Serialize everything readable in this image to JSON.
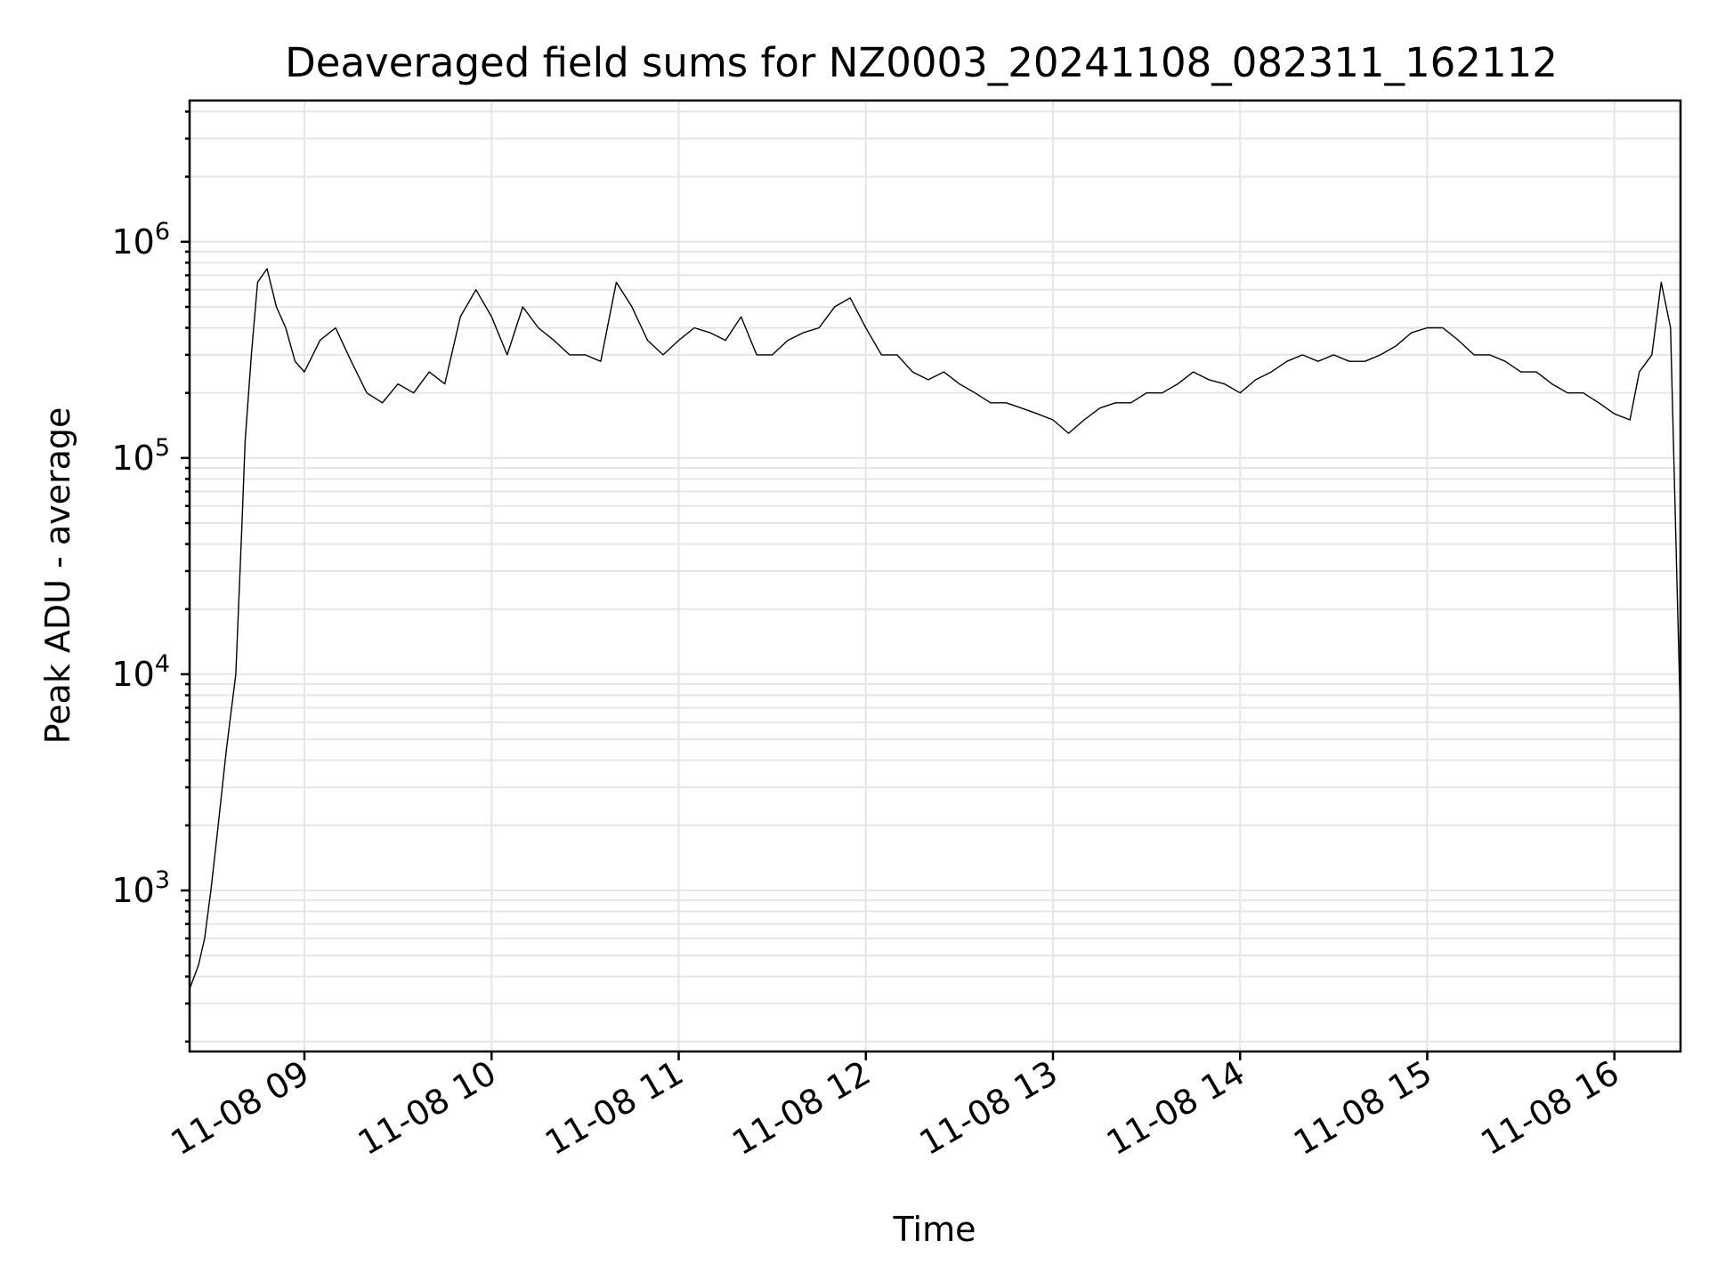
{
  "chart_data": {
    "type": "line",
    "title": "Deaveraged field sums for NZ0003_20241108_082311_162112",
    "xlabel": "Time",
    "ylabel": "Peak ADU - average",
    "yscale": "log",
    "xlim": [
      "2024-11-08 08:23:11",
      "2024-11-08 16:21:12"
    ],
    "ylim": [
      180,
      4500000
    ],
    "xticks": [
      {
        "value": "2024-11-08 09:00",
        "label": "11-08 09"
      },
      {
        "value": "2024-11-08 10:00",
        "label": "11-08 10"
      },
      {
        "value": "2024-11-08 11:00",
        "label": "11-08 11"
      },
      {
        "value": "2024-11-08 12:00",
        "label": "11-08 12"
      },
      {
        "value": "2024-11-08 13:00",
        "label": "11-08 13"
      },
      {
        "value": "2024-11-08 14:00",
        "label": "11-08 14"
      },
      {
        "value": "2024-11-08 15:00",
        "label": "11-08 15"
      },
      {
        "value": "2024-11-08 16:00",
        "label": "11-08 16"
      }
    ],
    "yticks": [
      {
        "value": 1000,
        "base": "10",
        "exp": "3"
      },
      {
        "value": 10000,
        "base": "10",
        "exp": "4"
      },
      {
        "value": 100000,
        "base": "10",
        "exp": "5"
      },
      {
        "value": 1000000,
        "base": "10",
        "exp": "6"
      }
    ],
    "grid": true,
    "legend": "none",
    "line_color": "#000000",
    "series": [
      {
        "x": [
          "2024-11-08 08:23:11",
          "2024-11-08 08:26",
          "2024-11-08 08:28",
          "2024-11-08 08:30",
          "2024-11-08 08:32",
          "2024-11-08 08:35",
          "2024-11-08 08:38",
          "2024-11-08 08:40",
          "2024-11-08 08:41",
          "2024-11-08 08:43",
          "2024-11-08 08:45",
          "2024-11-08 08:48",
          "2024-11-08 08:51",
          "2024-11-08 08:54",
          "2024-11-08 08:57",
          "2024-11-08 09:00",
          "2024-11-08 09:05",
          "2024-11-08 09:10",
          "2024-11-08 09:15",
          "2024-11-08 09:20",
          "2024-11-08 09:25",
          "2024-11-08 09:30",
          "2024-11-08 09:35",
          "2024-11-08 09:40",
          "2024-11-08 09:45",
          "2024-11-08 09:50",
          "2024-11-08 09:55",
          "2024-11-08 10:00",
          "2024-11-08 10:05",
          "2024-11-08 10:10",
          "2024-11-08 10:15",
          "2024-11-08 10:20",
          "2024-11-08 10:25",
          "2024-11-08 10:30",
          "2024-11-08 10:35",
          "2024-11-08 10:40",
          "2024-11-08 10:45",
          "2024-11-08 10:50",
          "2024-11-08 10:55",
          "2024-11-08 11:00",
          "2024-11-08 11:05",
          "2024-11-08 11:10",
          "2024-11-08 11:15",
          "2024-11-08 11:20",
          "2024-11-08 11:25",
          "2024-11-08 11:30",
          "2024-11-08 11:35",
          "2024-11-08 11:40",
          "2024-11-08 11:45",
          "2024-11-08 11:50",
          "2024-11-08 11:55",
          "2024-11-08 12:00",
          "2024-11-08 12:05",
          "2024-11-08 12:10",
          "2024-11-08 12:15",
          "2024-11-08 12:20",
          "2024-11-08 12:25",
          "2024-11-08 12:30",
          "2024-11-08 12:35",
          "2024-11-08 12:40",
          "2024-11-08 12:45",
          "2024-11-08 12:50",
          "2024-11-08 12:55",
          "2024-11-08 13:00",
          "2024-11-08 13:05",
          "2024-11-08 13:10",
          "2024-11-08 13:15",
          "2024-11-08 13:20",
          "2024-11-08 13:25",
          "2024-11-08 13:30",
          "2024-11-08 13:35",
          "2024-11-08 13:40",
          "2024-11-08 13:45",
          "2024-11-08 13:50",
          "2024-11-08 13:55",
          "2024-11-08 14:00",
          "2024-11-08 14:05",
          "2024-11-08 14:10",
          "2024-11-08 14:15",
          "2024-11-08 14:20",
          "2024-11-08 14:25",
          "2024-11-08 14:30",
          "2024-11-08 14:35",
          "2024-11-08 14:40",
          "2024-11-08 14:45",
          "2024-11-08 14:50",
          "2024-11-08 14:55",
          "2024-11-08 15:00",
          "2024-11-08 15:05",
          "2024-11-08 15:10",
          "2024-11-08 15:15",
          "2024-11-08 15:20",
          "2024-11-08 15:25",
          "2024-11-08 15:30",
          "2024-11-08 15:35",
          "2024-11-08 15:40",
          "2024-11-08 15:45",
          "2024-11-08 15:50",
          "2024-11-08 15:55",
          "2024-11-08 16:00",
          "2024-11-08 16:05",
          "2024-11-08 16:08",
          "2024-11-08 16:12",
          "2024-11-08 16:15",
          "2024-11-08 16:18",
          "2024-11-08 16:21:12"
        ],
        "y": [
          350,
          450,
          600,
          1000,
          1800,
          4500,
          10000,
          50000,
          120000,
          300000,
          650000,
          750000,
          500000,
          400000,
          280000,
          250000,
          350000,
          400000,
          280000,
          200000,
          180000,
          220000,
          200000,
          250000,
          220000,
          450000,
          600000,
          450000,
          300000,
          500000,
          400000,
          350000,
          300000,
          300000,
          280000,
          650000,
          500000,
          350000,
          300000,
          350000,
          400000,
          380000,
          350000,
          450000,
          300000,
          300000,
          350000,
          380000,
          400000,
          500000,
          550000,
          400000,
          300000,
          300000,
          250000,
          230000,
          250000,
          220000,
          200000,
          180000,
          180000,
          170000,
          160000,
          150000,
          130000,
          150000,
          170000,
          180000,
          180000,
          200000,
          200000,
          220000,
          250000,
          230000,
          220000,
          200000,
          230000,
          250000,
          280000,
          300000,
          280000,
          300000,
          280000,
          280000,
          300000,
          330000,
          380000,
          400000,
          400000,
          350000,
          300000,
          300000,
          280000,
          250000,
          250000,
          220000,
          200000,
          200000,
          180000,
          160000,
          150000,
          250000,
          300000,
          650000,
          400000,
          6000
        ]
      }
    ]
  }
}
